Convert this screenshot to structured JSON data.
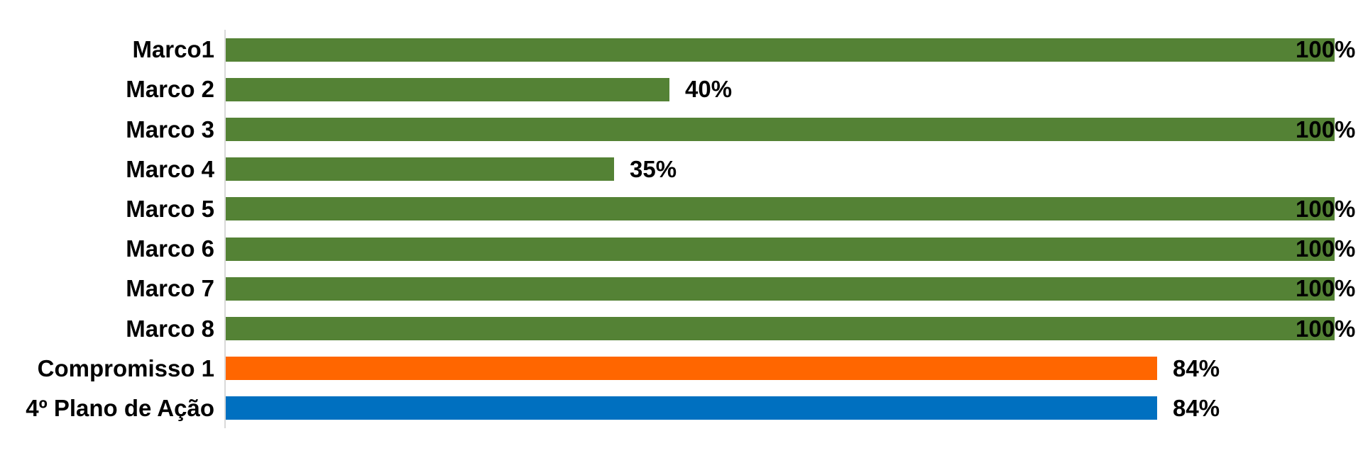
{
  "chart_data": {
    "type": "bar",
    "orientation": "horizontal",
    "title": "",
    "xlabel": "",
    "ylabel": "",
    "xlim": [
      0,
      100
    ],
    "grid": false,
    "legend": false,
    "categories": [
      "Marco1",
      "Marco 2",
      "Marco 3",
      "Marco 4",
      "Marco 5",
      "Marco 6",
      "Marco 7",
      "Marco 8",
      "Compromisso 1",
      "4º Plano de Ação"
    ],
    "values": [
      100,
      40,
      100,
      35,
      100,
      100,
      100,
      100,
      84,
      84
    ],
    "value_labels": [
      "100%",
      "40%",
      "100%",
      "35%",
      "100%",
      "100%",
      "100%",
      "100%",
      "84%",
      "84%"
    ],
    "bar_colors": [
      "#548235",
      "#548235",
      "#548235",
      "#548235",
      "#548235",
      "#548235",
      "#548235",
      "#548235",
      "#FF6600",
      "#0070C0"
    ],
    "colors": {
      "marco_green": "#548235",
      "compromisso_orange": "#FF6600",
      "plano_blue": "#0070C0",
      "axis_line": "#D9D9D9",
      "label_text": "#000000",
      "background": "#FFFFFF"
    }
  }
}
